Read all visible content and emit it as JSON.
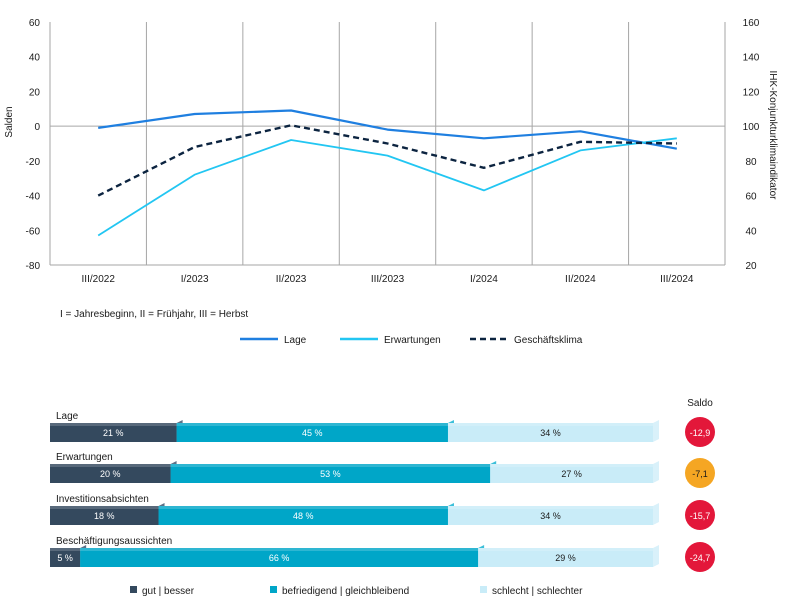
{
  "colors": {
    "lage": "#1f7fe0",
    "erwartungen": "#22c6f2",
    "klima": "#0c2440",
    "grid": "#a6a6a6",
    "bar_gut": "#34495e",
    "bar_befriedigend": "#00a6c8",
    "bar_schlecht": "#c9ecf8",
    "saldo_red": "#e3173a",
    "saldo_orange": "#f5a623"
  },
  "chart_data": [
    {
      "type": "line",
      "title": "",
      "categories": [
        "III/2022",
        "I/2023",
        "II/2023",
        "III/2023",
        "I/2024",
        "II/2024",
        "III/2024"
      ],
      "ylabel": "Salden",
      "ylim": [
        -80,
        60
      ],
      "yticks": [
        "-80",
        "-60",
        "-40",
        "-20",
        "0",
        "20",
        "40",
        "60"
      ],
      "y2label": "IHK-Konjunkturklimaindikator",
      "y2lim": [
        20,
        160
      ],
      "y2ticks": [
        "20",
        "40",
        "60",
        "80",
        "100",
        "120",
        "140",
        "160"
      ],
      "grid": "vertical lines between categories, horizontal line at 0",
      "note": "I = Jahresbeginn, II = Frühjahr, III = Herbst",
      "series": [
        {
          "name": "Lage",
          "axis": "left",
          "style": "solid",
          "values": [
            -1,
            7,
            9,
            -2,
            -7,
            -3,
            -13
          ]
        },
        {
          "name": "Erwartungen",
          "axis": "left",
          "style": "solid",
          "values": [
            -63,
            -28,
            -8,
            -17,
            -37,
            -14,
            -7
          ]
        },
        {
          "name": "Geschäftsklima",
          "axis": "right",
          "style": "dashed",
          "values": [
            60,
            88,
            100.5,
            90,
            76,
            91,
            90
          ]
        }
      ]
    },
    {
      "type": "bar",
      "stacked": true,
      "orientation": "horizontal",
      "categories": [
        "Lage",
        "Erwartungen",
        "Investitionsabsichten",
        "Beschäftigungsaussichten"
      ],
      "series": [
        {
          "name": "gut | besser",
          "values": [
            21,
            20,
            18,
            5
          ],
          "labels": [
            "21 %",
            "20 %",
            "18 %",
            "5 %"
          ]
        },
        {
          "name": "befriedigend | gleichbleibend",
          "values": [
            45,
            53,
            48,
            66
          ],
          "labels": [
            "45 %",
            "53 %",
            "48 %",
            "66 %"
          ]
        },
        {
          "name": "schlecht | schlechter",
          "values": [
            34,
            27,
            34,
            29
          ],
          "labels": [
            "34 %",
            "27 %",
            "34 %",
            "29 %"
          ]
        }
      ],
      "saldo_title": "Saldo",
      "saldo": [
        {
          "label": "-12,9",
          "color": "red"
        },
        {
          "label": "-7,1",
          "color": "orange"
        },
        {
          "label": "-15,7",
          "color": "red"
        },
        {
          "label": "-24,7",
          "color": "red"
        }
      ]
    }
  ]
}
